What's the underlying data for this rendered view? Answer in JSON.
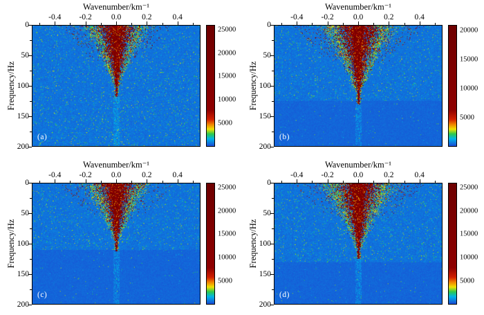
{
  "figure": {
    "background": "#ffffff",
    "text_color": "#000000",
    "colormap": [
      {
        "v": 0.0,
        "c": "#1a4ad4"
      },
      {
        "v": 0.06,
        "c": "#00b4e8"
      },
      {
        "v": 0.1,
        "c": "#2cc84e"
      },
      {
        "v": 0.14,
        "c": "#f0e000"
      },
      {
        "v": 0.18,
        "c": "#f08200"
      },
      {
        "v": 0.22,
        "c": "#d22000"
      },
      {
        "v": 0.3,
        "c": "#8e0000"
      },
      {
        "v": 1.0,
        "c": "#6e0000"
      }
    ]
  },
  "chart_data": [
    {
      "type": "heatmap",
      "panel_label": "(a)",
      "xlabel": "Wavenumber/km⁻¹",
      "ylabel": "Frequency/Hz",
      "x_ticks": [
        "-0.4",
        "-0.2",
        "0.0",
        "0.2",
        "0.4"
      ],
      "y_ticks": [
        "0",
        "50",
        "100",
        "150",
        "200"
      ],
      "xlim": [
        -0.55,
        0.55
      ],
      "ylim": [
        0,
        200
      ],
      "y_inverted": true,
      "grid": false,
      "colorbar_ticks": [
        "5000",
        "10000",
        "15000",
        "20000",
        "25000"
      ],
      "colorbar_range": [
        0,
        26000
      ],
      "energy": {
        "center_wavenumber": 0.0,
        "top_halfwidth_k": 0.15,
        "apex_freq_hz": 118,
        "noise_density": 0.5,
        "noise_extent": 1.0
      }
    },
    {
      "type": "heatmap",
      "panel_label": "(b)",
      "xlabel": "Wavenumber/km⁻¹",
      "ylabel": "Frequency/Hz",
      "x_ticks": [
        "-0.4",
        "-0.2",
        "0.0",
        "0.2",
        "0.4"
      ],
      "y_ticks": [
        "0",
        "50",
        "100",
        "150",
        "200"
      ],
      "xlim": [
        -0.55,
        0.55
      ],
      "ylim": [
        0,
        200
      ],
      "y_inverted": true,
      "grid": false,
      "colorbar_ticks": [
        "5000",
        "10000",
        "15000",
        "20000"
      ],
      "colorbar_range": [
        0,
        21000
      ],
      "energy": {
        "center_wavenumber": 0.0,
        "top_halfwidth_k": 0.17,
        "apex_freq_hz": 130,
        "noise_density": 0.42,
        "noise_extent": 0.62
      }
    },
    {
      "type": "heatmap",
      "panel_label": "(c)",
      "xlabel": "Wavenumber/km⁻¹",
      "ylabel": "Frequency/Hz",
      "x_ticks": [
        "-0.4",
        "-0.2",
        "0.0",
        "0.2",
        "0.4"
      ],
      "y_ticks": [
        "0",
        "50",
        "100",
        "150",
        "200"
      ],
      "xlim": [
        -0.55,
        0.55
      ],
      "ylim": [
        0,
        200
      ],
      "y_inverted": true,
      "grid": false,
      "colorbar_ticks": [
        "5000",
        "10000",
        "15000",
        "20000",
        "25000"
      ],
      "colorbar_range": [
        0,
        26000
      ],
      "energy": {
        "center_wavenumber": 0.0,
        "top_halfwidth_k": 0.15,
        "apex_freq_hz": 112,
        "noise_density": 0.42,
        "noise_extent": 0.55
      }
    },
    {
      "type": "heatmap",
      "panel_label": "(d)",
      "xlabel": "Wavenumber/km⁻¹",
      "ylabel": "Frequency/Hz",
      "x_ticks": [
        "-0.4",
        "-0.2",
        "0.0",
        "0.2",
        "0.4"
      ],
      "y_ticks": [
        "0",
        "50",
        "100",
        "150",
        "200"
      ],
      "xlim": [
        -0.55,
        0.55
      ],
      "ylim": [
        0,
        200
      ],
      "y_inverted": true,
      "grid": false,
      "colorbar_ticks": [
        "5000",
        "10000",
        "15000",
        "20000",
        "25000"
      ],
      "colorbar_range": [
        0,
        26000
      ],
      "energy": {
        "center_wavenumber": 0.0,
        "top_halfwidth_k": 0.17,
        "apex_freq_hz": 125,
        "noise_density": 0.5,
        "noise_extent": 0.65
      }
    }
  ]
}
